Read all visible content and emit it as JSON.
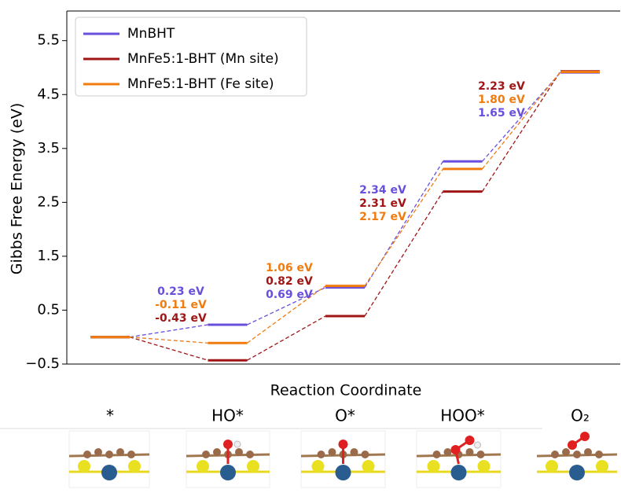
{
  "chart_data": {
    "type": "energy-levels",
    "ylabel": "Gibbs Free Energy (eV)",
    "xlabel": "Reaction Coordinate",
    "categories": [
      "*",
      "HO*",
      "O*",
      "HOO*",
      "O₂"
    ],
    "series": [
      {
        "name": "MnBHT",
        "color": "#6a4fdc",
        "values": [
          0,
          0.23,
          0.92,
          3.26,
          4.91
        ]
      },
      {
        "name": "MnFe5:1-BHT (Mn site)",
        "color": "#a01515",
        "values": [
          0,
          -0.43,
          0.39,
          2.7,
          4.93
        ]
      },
      {
        "name": "MnFe5:1-BHT (Fe site)",
        "color": "#f07c10",
        "values": [
          0,
          -0.11,
          0.95,
          3.12,
          4.92
        ]
      }
    ],
    "annotations": [
      [
        {
          "text": "0.23 eV",
          "color": "#6a4fdc"
        },
        {
          "text": "-0.11 eV",
          "color": "#f07c10"
        },
        {
          "text": "-0.43 eV",
          "color": "#a01515"
        }
      ],
      [
        {
          "text": "1.06 eV",
          "color": "#f07c10"
        },
        {
          "text": "0.82 eV",
          "color": "#a01515"
        },
        {
          "text": "0.69 eV",
          "color": "#6a4fdc"
        }
      ],
      [
        {
          "text": "2.34 eV",
          "color": "#6a4fdc"
        },
        {
          "text": "2.31 eV",
          "color": "#a01515"
        },
        {
          "text": "2.17 eV",
          "color": "#f07c10"
        }
      ],
      [
        {
          "text": "2.23 eV",
          "color": "#a01515"
        },
        {
          "text": "1.80 eV",
          "color": "#f07c10"
        },
        {
          "text": "1.65 eV",
          "color": "#6a4fdc"
        }
      ]
    ],
    "ylim": [
      -0.5,
      6.05
    ],
    "yticks": [
      {
        "value": -0.5,
        "label": "−0.5"
      },
      0.5,
      1.5,
      2.5,
      3.5,
      4.5,
      5.5
    ],
    "legend": "upper left"
  }
}
